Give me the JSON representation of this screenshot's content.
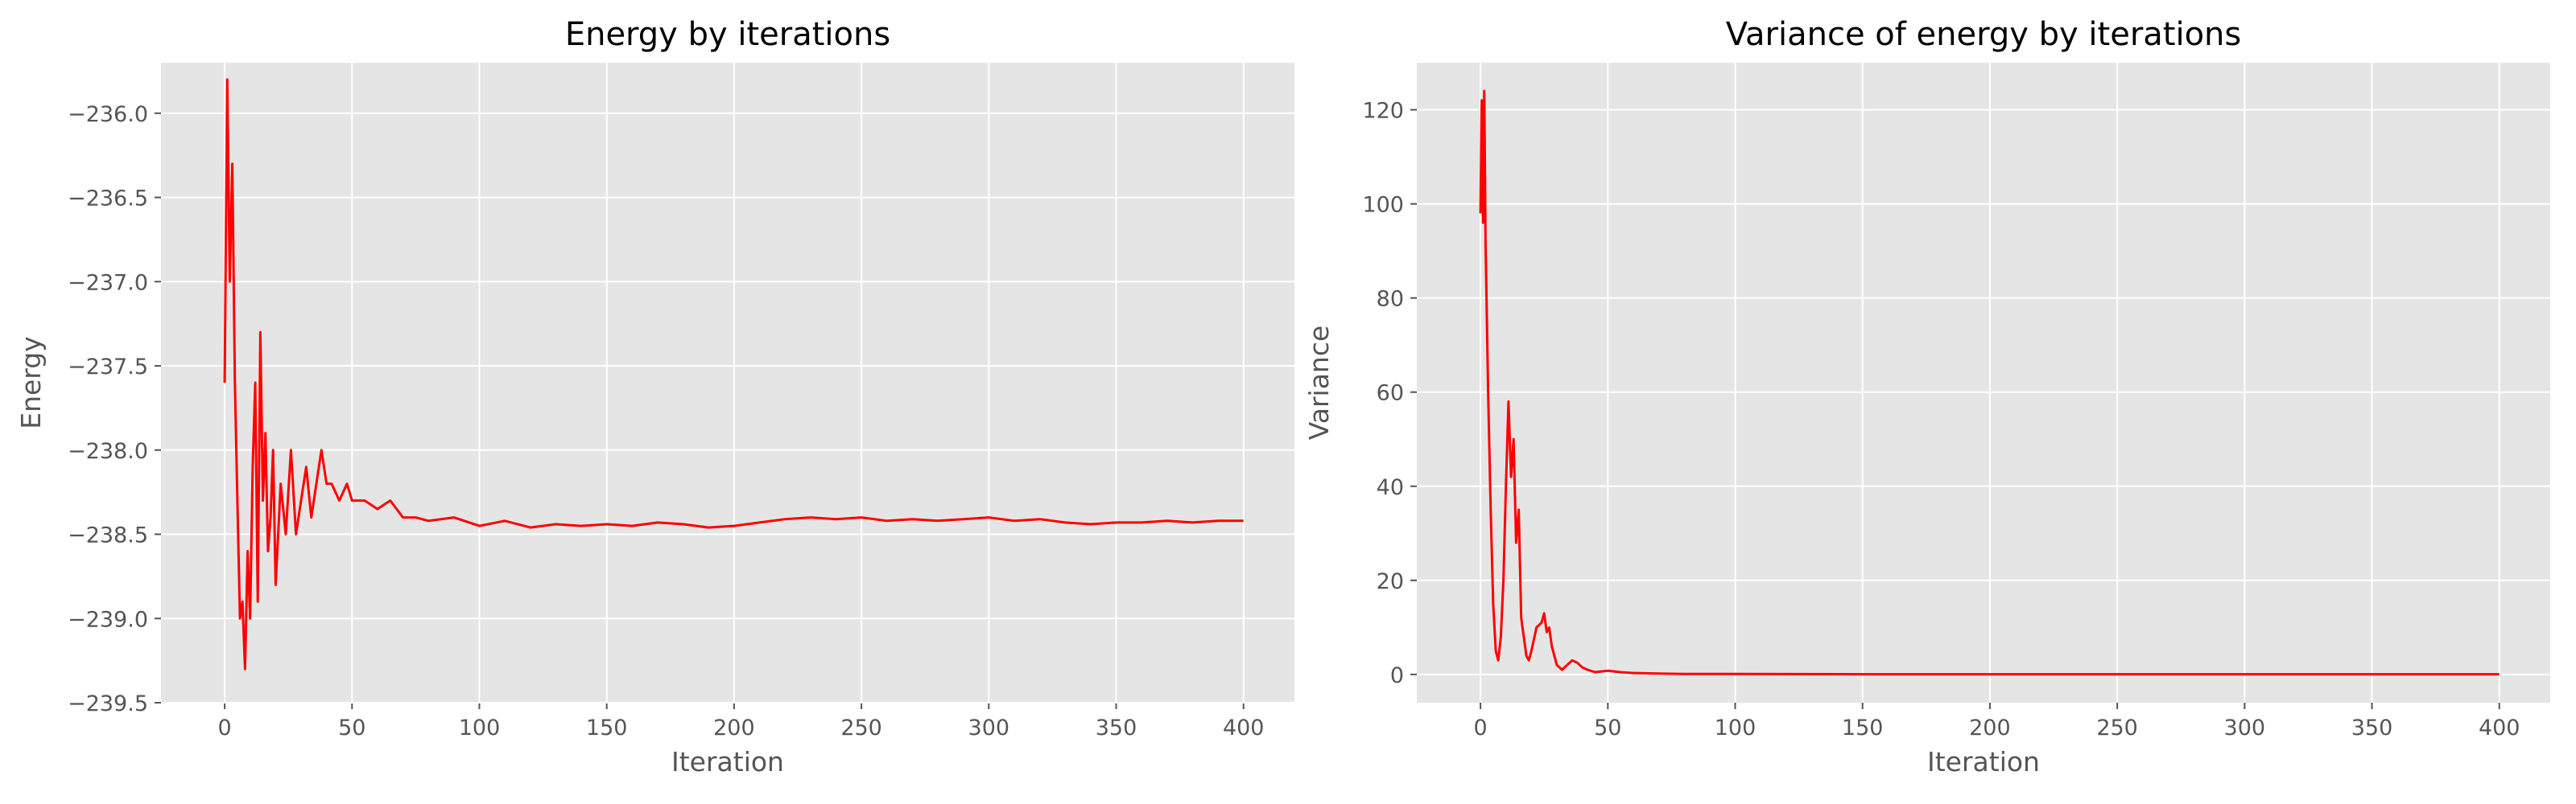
{
  "chart_data": [
    {
      "type": "line",
      "title": "Energy by iterations",
      "xlabel": "Iteration",
      "ylabel": "Energy",
      "xlim": [
        -25,
        420
      ],
      "ylim": [
        -239.5,
        -235.7
      ],
      "xticks": [
        0,
        50,
        100,
        150,
        200,
        250,
        300,
        350,
        400
      ],
      "yticks": [
        -239.5,
        -239.0,
        -238.5,
        -238.0,
        -237.5,
        -237.0,
        -236.5,
        -236.0
      ],
      "xtick_labels": [
        "0",
        "50",
        "100",
        "150",
        "200",
        "250",
        "300",
        "350",
        "400"
      ],
      "ytick_labels": [
        "−239.5",
        "−239.0",
        "−238.5",
        "−238.0",
        "−237.5",
        "−237.0",
        "−236.5",
        "−236.0"
      ],
      "grid": true,
      "series": [
        {
          "color": "#ff0000",
          "x": [
            0,
            1,
            2,
            3,
            4,
            5,
            6,
            7,
            8,
            9,
            10,
            11,
            12,
            13,
            14,
            15,
            16,
            17,
            18,
            19,
            20,
            22,
            24,
            26,
            28,
            30,
            32,
            34,
            36,
            38,
            40,
            42,
            45,
            48,
            50,
            55,
            60,
            65,
            70,
            75,
            80,
            90,
            100,
            110,
            120,
            130,
            140,
            150,
            160,
            170,
            180,
            190,
            200,
            210,
            220,
            230,
            240,
            250,
            260,
            270,
            280,
            290,
            300,
            310,
            320,
            330,
            340,
            350,
            360,
            370,
            380,
            390,
            400
          ],
          "y": [
            -237.6,
            -235.8,
            -237.0,
            -236.3,
            -237.6,
            -238.3,
            -239.0,
            -238.9,
            -239.3,
            -238.6,
            -239.0,
            -238.1,
            -237.6,
            -238.9,
            -237.3,
            -238.3,
            -237.9,
            -238.6,
            -238.4,
            -238.0,
            -238.8,
            -238.2,
            -238.5,
            -238.0,
            -238.5,
            -238.3,
            -238.1,
            -238.4,
            -238.2,
            -238.0,
            -238.2,
            -238.2,
            -238.3,
            -238.2,
            -238.3,
            -238.3,
            -238.35,
            -238.3,
            -238.4,
            -238.4,
            -238.42,
            -238.4,
            -238.45,
            -238.42,
            -238.46,
            -238.44,
            -238.45,
            -238.44,
            -238.45,
            -238.43,
            -238.44,
            -238.46,
            -238.45,
            -238.43,
            -238.41,
            -238.4,
            -238.41,
            -238.4,
            -238.42,
            -238.41,
            -238.42,
            -238.41,
            -238.4,
            -238.42,
            -238.41,
            -238.43,
            -238.44,
            -238.43,
            -238.43,
            -238.42,
            -238.43,
            -238.42,
            -238.42
          ]
        }
      ]
    },
    {
      "type": "line",
      "title": "Variance of energy by iterations",
      "xlabel": "Iteration",
      "ylabel": "Variance",
      "xlim": [
        -25,
        420
      ],
      "ylim": [
        -6,
        130
      ],
      "xticks": [
        0,
        50,
        100,
        150,
        200,
        250,
        300,
        350,
        400
      ],
      "yticks": [
        0,
        20,
        40,
        60,
        80,
        100,
        120
      ],
      "xtick_labels": [
        "0",
        "50",
        "100",
        "150",
        "200",
        "250",
        "300",
        "350",
        "400"
      ],
      "ytick_labels": [
        "0",
        "20",
        "40",
        "60",
        "80",
        "100",
        "120"
      ],
      "grid": true,
      "series": [
        {
          "color": "#ff0000",
          "x": [
            0,
            0.5,
            1,
            1.5,
            2,
            3,
            4,
            5,
            6,
            7,
            8,
            9,
            10,
            11,
            12,
            13,
            14,
            15,
            16,
            17,
            18,
            19,
            20,
            22,
            24,
            25,
            26,
            27,
            28,
            30,
            32,
            34,
            36,
            38,
            40,
            42,
            45,
            50,
            55,
            60,
            70,
            80,
            100,
            150,
            200,
            250,
            300,
            350,
            400
          ],
          "y": [
            98,
            122,
            96,
            124,
            92,
            60,
            35,
            15,
            5,
            3,
            8,
            20,
            40,
            58,
            42,
            50,
            28,
            35,
            12,
            8,
            4,
            3,
            5,
            10,
            11,
            13,
            9,
            10,
            6,
            2,
            1,
            2,
            3,
            2.5,
            1.5,
            1,
            0.5,
            0.8,
            0.5,
            0.3,
            0.2,
            0.1,
            0.1,
            0.05,
            0.05,
            0.05,
            0.05,
            0.05,
            0.05
          ]
        }
      ]
    }
  ]
}
